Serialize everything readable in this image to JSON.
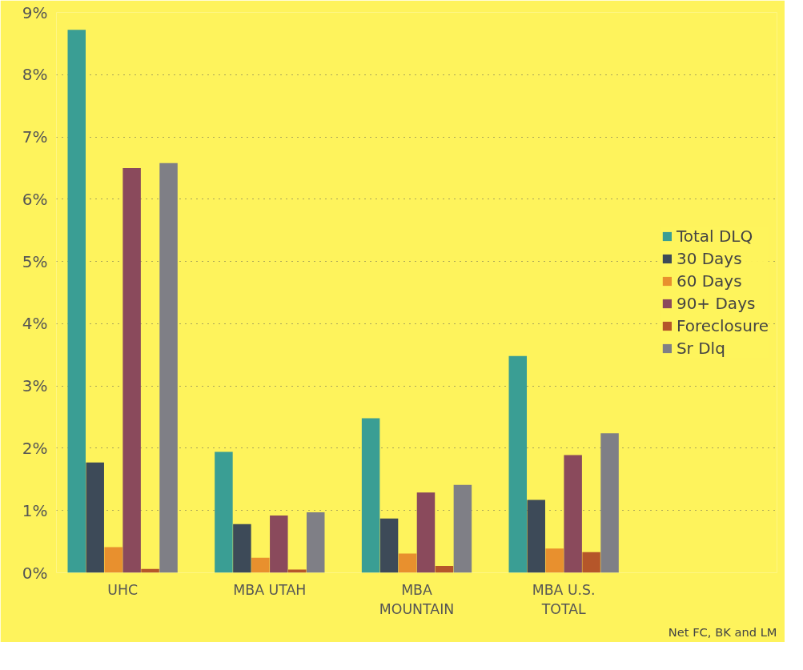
{
  "chart_data": {
    "type": "bar",
    "categories": [
      "UHC",
      "MBA UTAH",
      "MBA MOUNTAIN",
      "MBA U.S. TOTAL"
    ],
    "series": [
      {
        "name": "Total DLQ",
        "color": "#3a9e94",
        "values": [
          8.72,
          1.94,
          2.48,
          3.48
        ]
      },
      {
        "name": "30 Days",
        "color": "#3d4a58",
        "values": [
          1.77,
          0.78,
          0.87,
          1.17
        ]
      },
      {
        "name": "60 Days",
        "color": "#e8902e",
        "values": [
          0.41,
          0.24,
          0.31,
          0.39
        ]
      },
      {
        "name": "90+ Days",
        "color": "#8a4a5c",
        "values": [
          6.5,
          0.92,
          1.29,
          1.89
        ]
      },
      {
        "name": "Foreclosure",
        "color": "#b5562a",
        "values": [
          0.06,
          0.05,
          0.11,
          0.33
        ]
      },
      {
        "name": "Sr Dlq",
        "color": "#7f7f86",
        "values": [
          6.58,
          0.97,
          1.41,
          2.24
        ]
      }
    ],
    "ylim": [
      0,
      9
    ],
    "yticks": [
      {
        "value": 0,
        "label": "0%"
      },
      {
        "value": 1,
        "label": "1%"
      },
      {
        "value": 2,
        "label": "2%"
      },
      {
        "value": 3,
        "label": "3%"
      },
      {
        "value": 4,
        "label": "4%"
      },
      {
        "value": 5,
        "label": "5%"
      },
      {
        "value": 6,
        "label": "6%"
      },
      {
        "value": 7,
        "label": "7%"
      },
      {
        "value": 8,
        "label": "8%"
      },
      {
        "value": 9,
        "label": "9%"
      }
    ],
    "grid": "y",
    "legend": "right",
    "annotations": [
      "Net FC, BK and LM"
    ]
  }
}
